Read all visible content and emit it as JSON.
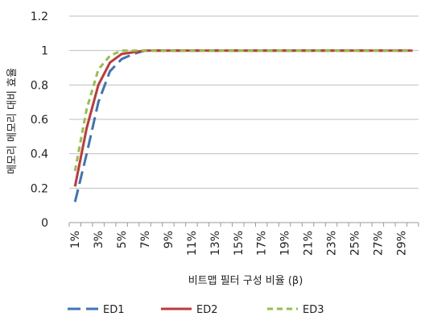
{
  "chart_data": {
    "type": "line",
    "title": "",
    "xlabel": "비트맵 필터 구성 비율 (β)",
    "ylabel": "메모리 메모리 대비 효율",
    "x": [
      "1%",
      "2%",
      "3%",
      "4%",
      "5%",
      "6%",
      "7%",
      "8%",
      "9%",
      "10%",
      "11%",
      "12%",
      "13%",
      "14%",
      "15%",
      "16%",
      "17%",
      "18%",
      "19%",
      "20%",
      "21%",
      "22%",
      "23%",
      "24%",
      "25%",
      "26%",
      "27%",
      "28%",
      "29%",
      "30%"
    ],
    "x_tick_labels": [
      "1%",
      "3%",
      "5%",
      "7%",
      "9%",
      "11%",
      "13%",
      "15%",
      "17%",
      "19%",
      "21%",
      "23%",
      "25%",
      "27%",
      "29%"
    ],
    "y_tick_labels": [
      "0",
      "0.2",
      "0.4",
      "0.6",
      "0.8",
      "1",
      "1.2"
    ],
    "ylim": [
      0,
      1.2
    ],
    "y_ticks": [
      0,
      0.2,
      0.4,
      0.6,
      0.8,
      1,
      1.2
    ],
    "grid": "horizontal",
    "legend": "bottom",
    "series": [
      {
        "name": "ED1",
        "color": "#3f74b8",
        "dash": "long-dash",
        "values": [
          0.12,
          0.4,
          0.7,
          0.88,
          0.95,
          0.98,
          1,
          1,
          1,
          1,
          1,
          1,
          1,
          1,
          1,
          1,
          1,
          1,
          1,
          1,
          1,
          1,
          1,
          1,
          1,
          1,
          1,
          1,
          1,
          1
        ]
      },
      {
        "name": "ED2",
        "color": "#c0383a",
        "dash": "solid",
        "values": [
          0.21,
          0.55,
          0.8,
          0.93,
          0.98,
          0.99,
          1,
          1,
          1,
          1,
          1,
          1,
          1,
          1,
          1,
          1,
          1,
          1,
          1,
          1,
          1,
          1,
          1,
          1,
          1,
          1,
          1,
          1,
          1,
          1
        ]
      },
      {
        "name": "ED3",
        "color": "#93c04a",
        "dash": "short-dash",
        "values": [
          0.3,
          0.66,
          0.89,
          0.97,
          1,
          1,
          1,
          1,
          1,
          1,
          1,
          1,
          1,
          1,
          1,
          1,
          1,
          1,
          1,
          1,
          1,
          1,
          1,
          1,
          1,
          1,
          1,
          1,
          1,
          1
        ]
      }
    ]
  }
}
